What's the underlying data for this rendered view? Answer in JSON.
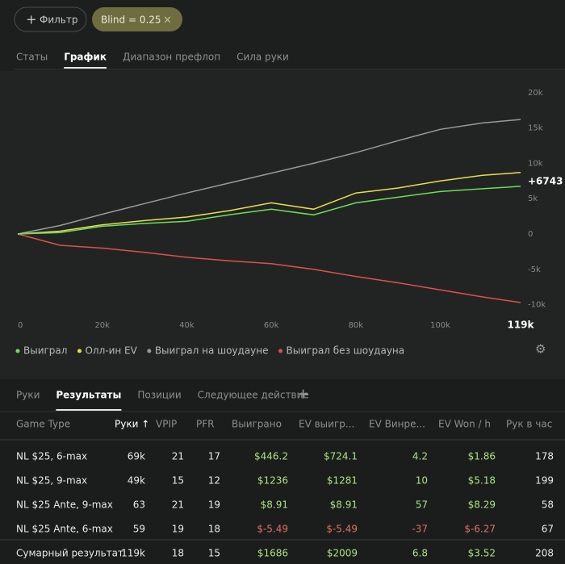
{
  "filters": {
    "add_button": "Фильтр",
    "chip": "Blind = 0.25"
  },
  "tabs": {
    "items": [
      "Статы",
      "График",
      "Диапазон префлоп",
      "Сила руки"
    ],
    "active": 1
  },
  "chart_data": {
    "type": "line",
    "x": [
      0,
      10000,
      20000,
      30000,
      40000,
      50000,
      60000,
      70000,
      80000,
      90000,
      100000,
      110000,
      119000
    ],
    "series": [
      {
        "name": "Выиграл",
        "color": "#6fdc5a",
        "values": [
          0,
          200,
          1100,
          1500,
          1800,
          2700,
          3500,
          2700,
          4400,
          5200,
          6000,
          6400,
          6743
        ],
        "last_value_label": "+6743"
      },
      {
        "name": "Олл-ин EV",
        "color": "#e8de4e",
        "values": [
          0,
          400,
          1300,
          1900,
          2400,
          3300,
          4400,
          3500,
          5800,
          6500,
          7500,
          8300,
          8700
        ]
      },
      {
        "name": "Выиграл на шоудауне",
        "color": "#9a9a9a",
        "values": [
          0,
          1200,
          2800,
          4300,
          5800,
          7200,
          8600,
          10000,
          11500,
          13200,
          14800,
          15700,
          16200
        ]
      },
      {
        "name": "Выиграл без шоудауна",
        "color": "#e0504a",
        "values": [
          0,
          -1600,
          -2000,
          -2600,
          -3300,
          -3800,
          -4200,
          -5000,
          -6000,
          -6900,
          -7900,
          -8900,
          -9700
        ]
      }
    ],
    "xlim": [
      0,
      119000
    ],
    "xticks": [
      0,
      {
        "value": 20000,
        "label": "20k"
      },
      {
        "value": 40000,
        "label": "40k"
      },
      {
        "value": 60000,
        "label": "60k"
      },
      {
        "value": 80000,
        "label": "80k"
      },
      {
        "value": 100000,
        "label": "100k"
      },
      {
        "value": 119000,
        "label": "119k"
      }
    ],
    "ylim": [
      -10500,
      21000
    ],
    "yticks": [
      {
        "value": 20000,
        "label": "20k"
      },
      {
        "value": 15000,
        "label": "15k"
      },
      {
        "value": 10000,
        "label": "10k"
      },
      {
        "value": 5000,
        "label": "5k"
      },
      0,
      {
        "value": -5000,
        "label": "-5k"
      },
      {
        "value": -10000,
        "label": "-10k"
      }
    ],
    "grid": false,
    "legend": "bottom-left"
  },
  "table_tabs": {
    "items": [
      "Руки",
      "Результаты",
      "Позиции",
      "Следующее действие"
    ],
    "active": 1
  },
  "table": {
    "header": [
      "Game Type",
      "Руки ↑",
      "VPIP",
      "PFR",
      "Выиграно",
      "EV выигр...",
      "EV Винре...",
      "EV Won / h",
      "Рук в час"
    ],
    "rows": [
      [
        "NL $25, 6-max",
        "69k",
        "21",
        "17",
        "$446.2",
        "$724.1",
        "4.2",
        "$1.86",
        "178"
      ],
      [
        "NL $25, 9-max",
        "49k",
        "15",
        "12",
        "$1236",
        "$1281",
        "10",
        "$5.18",
        "199"
      ],
      [
        "NL $25 Ante, 9-max",
        "63",
        "21",
        "19",
        "$8.91",
        "$8.91",
        "57",
        "$8.29",
        "58"
      ],
      [
        "NL $25 Ante, 6-max",
        "59",
        "19",
        "18",
        "$-5.49",
        "$-5.49",
        "-37",
        "$-6.27",
        "67"
      ]
    ],
    "total": [
      "Сумарный результат",
      "119k",
      "18",
      "15",
      "$1686",
      "$2009",
      "6.8",
      "$3.52",
      "208"
    ]
  }
}
